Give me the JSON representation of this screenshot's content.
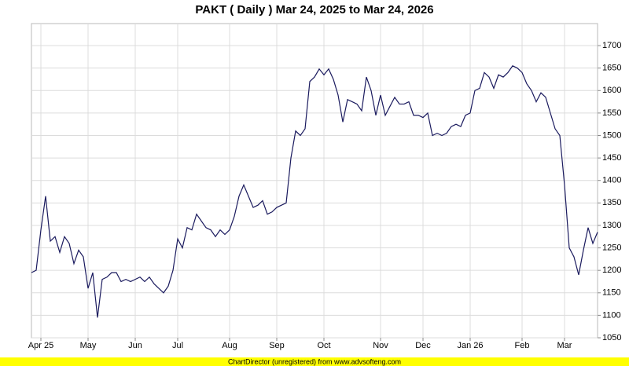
{
  "chart_data": {
    "type": "line",
    "title": "PAKT ( Daily ) Mar 24, 2025 to Mar 24, 2026",
    "footer": "ChartDirector (unregistered) from www.advsofteng.com",
    "categories": [
      null,
      null,
      "Apr 25",
      null,
      null,
      null,
      null,
      null,
      null,
      null,
      null,
      null,
      "May",
      null,
      null,
      null,
      null,
      null,
      null,
      null,
      null,
      null,
      "Jun",
      null,
      null,
      null,
      null,
      null,
      null,
      null,
      null,
      "Jul",
      null,
      null,
      null,
      null,
      null,
      null,
      null,
      null,
      null,
      null,
      "Aug",
      null,
      null,
      null,
      null,
      null,
      null,
      null,
      null,
      null,
      "Sep",
      null,
      null,
      null,
      null,
      null,
      null,
      null,
      null,
      null,
      "Oct",
      null,
      null,
      null,
      null,
      null,
      null,
      null,
      null,
      null,
      null,
      null,
      "Nov",
      null,
      null,
      null,
      null,
      null,
      null,
      null,
      null,
      "Dec",
      null,
      null,
      null,
      null,
      null,
      null,
      null,
      null,
      null,
      "Jan 26",
      null,
      null,
      null,
      null,
      null,
      null,
      null,
      null,
      null,
      null,
      "Feb",
      null,
      null,
      null,
      null,
      null,
      null,
      null,
      null,
      "Mar",
      null,
      null,
      null,
      null,
      null,
      null,
      null
    ],
    "values": [
      1195,
      1200,
      1290,
      1365,
      1265,
      1275,
      1240,
      1275,
      1260,
      1215,
      1245,
      1230,
      1160,
      1195,
      1095,
      1180,
      1185,
      1195,
      1195,
      1175,
      1180,
      1175,
      1180,
      1185,
      1175,
      1185,
      1170,
      1160,
      1150,
      1165,
      1200,
      1270,
      1250,
      1295,
      1290,
      1325,
      1310,
      1295,
      1290,
      1275,
      1290,
      1280,
      1290,
      1320,
      1365,
      1390,
      1365,
      1340,
      1345,
      1355,
      1325,
      1330,
      1340,
      1345,
      1350,
      1450,
      1510,
      1500,
      1515,
      1620,
      1630,
      1648,
      1635,
      1648,
      1625,
      1590,
      1530,
      1580,
      1575,
      1570,
      1555,
      1630,
      1600,
      1545,
      1590,
      1545,
      1565,
      1585,
      1570,
      1570,
      1575,
      1545,
      1545,
      1540,
      1550,
      1500,
      1505,
      1500,
      1505,
      1520,
      1525,
      1520,
      1545,
      1550,
      1600,
      1605,
      1640,
      1630,
      1605,
      1635,
      1630,
      1640,
      1655,
      1650,
      1640,
      1615,
      1600,
      1575,
      1595,
      1585,
      1550,
      1515,
      1500,
      1390,
      1250,
      1230,
      1190,
      1245,
      1295,
      1260,
      1285
    ],
    "color": "#1a1a5e",
    "ylim": [
      1050,
      1749
    ],
    "yticks": [
      1050,
      1100,
      1150,
      1200,
      1250,
      1300,
      1350,
      1400,
      1450,
      1500,
      1550,
      1600,
      1650,
      1700
    ],
    "grid": true
  }
}
